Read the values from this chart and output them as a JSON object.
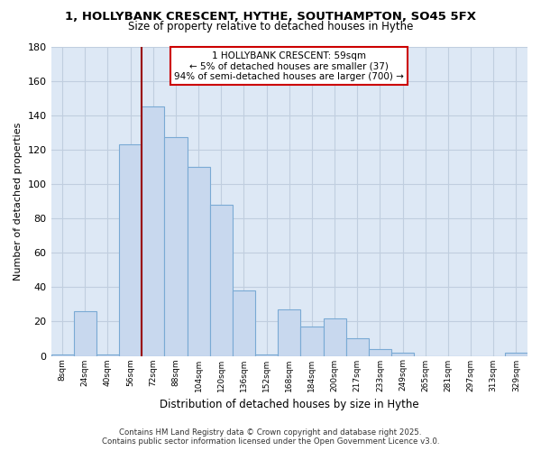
{
  "title": "1, HOLLYBANK CRESCENT, HYTHE, SOUTHAMPTON, SO45 5FX",
  "subtitle": "Size of property relative to detached houses in Hythe",
  "xlabel": "Distribution of detached houses by size in Hythe",
  "ylabel": "Number of detached properties",
  "bar_labels": [
    "8sqm",
    "24sqm",
    "40sqm",
    "56sqm",
    "72sqm",
    "88sqm",
    "104sqm",
    "120sqm",
    "136sqm",
    "152sqm",
    "168sqm",
    "184sqm",
    "200sqm",
    "217sqm",
    "233sqm",
    "249sqm",
    "265sqm",
    "281sqm",
    "297sqm",
    "313sqm",
    "329sqm"
  ],
  "bar_values": [
    1,
    26,
    1,
    123,
    145,
    127,
    110,
    88,
    38,
    1,
    27,
    17,
    22,
    10,
    4,
    2,
    0,
    0,
    0,
    0,
    2
  ],
  "bar_color": "#c8d8ee",
  "bar_edge_color": "#7aaad4",
  "vline_color": "#990000",
  "ylim": [
    0,
    180
  ],
  "yticks": [
    0,
    20,
    40,
    60,
    80,
    100,
    120,
    140,
    160,
    180
  ],
  "annotation_title": "1 HOLLYBANK CRESCENT: 59sqm",
  "annotation_line1": "← 5% of detached houses are smaller (37)",
  "annotation_line2": "94% of semi-detached houses are larger (700) →",
  "annotation_box_color": "#ffffff",
  "annotation_box_edge": "#cc0000",
  "footer_line1": "Contains HM Land Registry data © Crown copyright and database right 2025.",
  "footer_line2": "Contains public sector information licensed under the Open Government Licence v3.0.",
  "bg_color": "#ffffff",
  "plot_bg_color": "#dde8f5",
  "grid_color": "#c0cedf"
}
